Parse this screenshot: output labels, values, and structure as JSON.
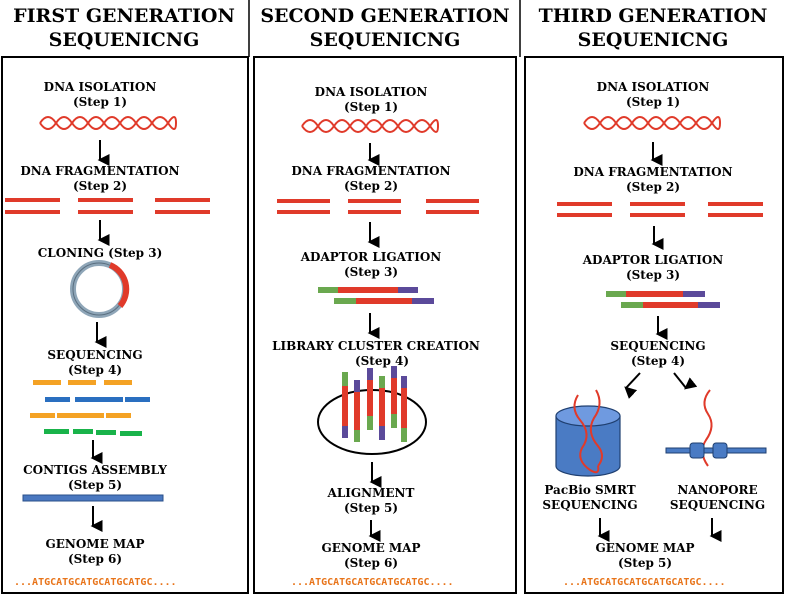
{
  "columns": [
    {
      "title_line1": "FIRST GENERATION",
      "title_line2": "SEQUENICNG",
      "steps": [
        {
          "name": "DNA ISOLATION",
          "step": "(Step 1)"
        },
        {
          "name": "DNA FRAGMENTATION",
          "step": "(Step 2)"
        },
        {
          "name": "CLONING (Step 3)"
        },
        {
          "name": "SEQUENCING",
          "step": "(Step 4)"
        },
        {
          "name": "CONTIGS ASSEMBLY",
          "step": "(Step 5)"
        },
        {
          "name": "GENOME MAP",
          "step": "(Step 6)"
        }
      ],
      "sequence": "...ATGCATGCATGCATGCATGC...."
    },
    {
      "title_line1": "SECOND GENERATION",
      "title_line2": "SEQUENICNG",
      "steps": [
        {
          "name": "DNA ISOLATION",
          "step": "(Step 1)"
        },
        {
          "name": "DNA FRAGMENTATION",
          "step": "(Step 2)"
        },
        {
          "name": "ADAPTOR LIGATION",
          "step": "(Step 3)"
        },
        {
          "name": "LIBRARY CLUSTER CREATION",
          "step": "(Step 4)"
        },
        {
          "name": "ALIGNMENT",
          "step": "(Step 5)"
        },
        {
          "name": "GENOME MAP",
          "step": "(Step 6)"
        }
      ],
      "sequence": "...ATGCATGCATGCATGCATGC...."
    },
    {
      "title_line1": "THIRD GENERATION",
      "title_line2": "SEQUENICNG",
      "steps": [
        {
          "name": "DNA ISOLATION",
          "step": "(Step 1)"
        },
        {
          "name": "DNA FRAGMENTATION",
          "step": "(Step 2)"
        },
        {
          "name": "ADAPTOR LIGATION",
          "step": "(Step 3)"
        },
        {
          "name": "SEQUENCING",
          "step": "(Step 4)"
        },
        {
          "name": "PacBio SMRT",
          "step": "SEQUENCING"
        },
        {
          "name": "NANOPORE",
          "step": "SEQUENCING"
        },
        {
          "name": "GENOME MAP",
          "step": "(Step 5)"
        }
      ],
      "sequence": "...ATGCATGCATGCATGCATGC...."
    }
  ],
  "colors": {
    "dna": "#e03a2a",
    "orange": "#f4a224",
    "blue": "#2a6fc0",
    "green": "#19b34a",
    "adaptor_green": "#6aa84f",
    "adaptor_purple": "#5b4a9a",
    "nanopore_blue": "#4a7bc4"
  }
}
